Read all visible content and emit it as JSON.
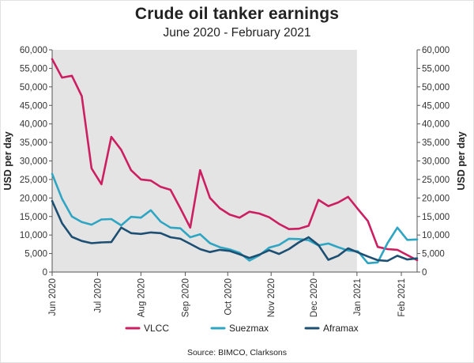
{
  "chart_data": {
    "type": "line",
    "title": "Crude oil tanker earnings",
    "subtitle": "June 2020 - February 2021",
    "ylabel": "USD per day",
    "ylabel_right": "USD per day",
    "ylim": [
      0,
      60000
    ],
    "yticks": [
      0,
      5000,
      10000,
      15000,
      20000,
      25000,
      30000,
      35000,
      40000,
      45000,
      50000,
      55000,
      60000
    ],
    "ytick_labels": [
      "0",
      "5,000",
      "10,000",
      "15,000",
      "20,000",
      "25,000",
      "30,000",
      "35,000",
      "40,000",
      "45,000",
      "50,000",
      "55,000",
      "60,000"
    ],
    "x_ticks": [
      {
        "label": "Jun 2020",
        "week": 0
      },
      {
        "label": "Jul 2020",
        "week": 4.6
      },
      {
        "label": "Aug 2020",
        "week": 9.0
      },
      {
        "label": "Sep 2020",
        "week": 13.5
      },
      {
        "label": "Oct 2020",
        "week": 17.8
      },
      {
        "label": "Nov 2020",
        "week": 22.2
      },
      {
        "label": "Dec 2020",
        "week": 26.5
      },
      {
        "label": "Jan 2021",
        "week": 30.9
      },
      {
        "label": "Feb 2021",
        "week": 35.4
      }
    ],
    "x_range_weeks": [
      0,
      37
    ],
    "shaded_region": {
      "label": "2020",
      "from_week": 0,
      "to_week": 30.9
    },
    "grid": false,
    "legend_position": "bottom",
    "source": "Source: BIMCO, Clarksons",
    "series": [
      {
        "name": "VLCC",
        "color": "#cc1f61",
        "values": [
          57500,
          52500,
          53000,
          47500,
          28000,
          23700,
          36500,
          33000,
          27500,
          25000,
          24700,
          23000,
          22200,
          17200,
          12000,
          27500,
          20000,
          17200,
          15500,
          14700,
          16300,
          15800,
          14800,
          13000,
          11600,
          11700,
          12500,
          19500,
          17800,
          18800,
          20300,
          17000,
          13800,
          6800,
          6200,
          6000,
          4600,
          3200
        ]
      },
      {
        "name": "Suezmax",
        "color": "#2ea5c2",
        "values": [
          26500,
          19800,
          15000,
          13500,
          12800,
          14200,
          14300,
          12600,
          14900,
          14700,
          16700,
          13600,
          12000,
          11800,
          9400,
          10200,
          7800,
          6700,
          6100,
          5200,
          3100,
          4500,
          6600,
          7300,
          9000,
          8900,
          8600,
          7200,
          7700,
          6700,
          5800,
          5600,
          2400,
          2600,
          7800,
          12000,
          8700,
          8800
        ]
      },
      {
        "name": "Aframax",
        "color": "#1d4f73",
        "values": [
          19200,
          13200,
          9500,
          8400,
          7800,
          8000,
          8100,
          12000,
          10500,
          10300,
          10700,
          10500,
          9400,
          9000,
          7600,
          6200,
          5400,
          6000,
          5700,
          4800,
          3800,
          4700,
          5900,
          4900,
          6200,
          8000,
          9400,
          7300,
          3300,
          4400,
          6400,
          5300,
          4200,
          3200,
          3000,
          4400,
          3400,
          3700
        ]
      }
    ]
  }
}
